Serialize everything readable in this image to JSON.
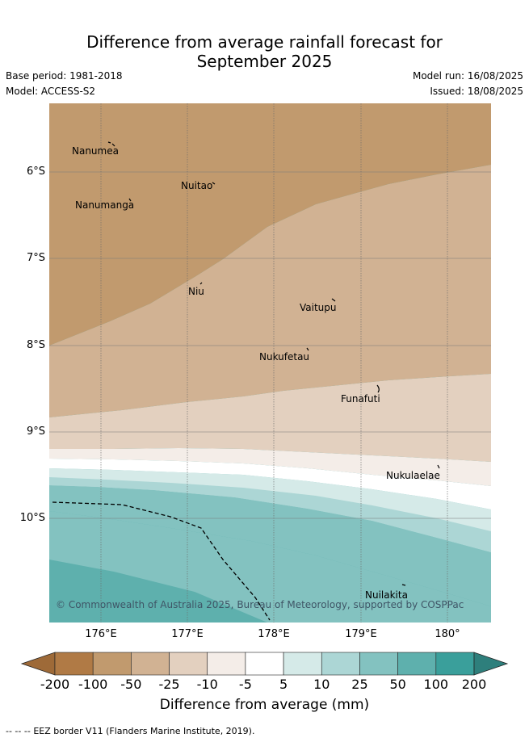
{
  "title_line1": "Difference from average rainfall forecast for",
  "title_line2": "September 2025",
  "meta": {
    "base_period": "Base period: 1981-2018",
    "model": "Model: ACCESS-S2",
    "model_run": "Model run: 16/08/2025",
    "issued": "Issued: 18/08/2025"
  },
  "islands": [
    {
      "name": "Nanumea"
    },
    {
      "name": "Nuitao"
    },
    {
      "name": "Nanumanga"
    },
    {
      "name": "Niu"
    },
    {
      "name": "Vaitupu"
    },
    {
      "name": "Nukufetau"
    },
    {
      "name": "Funafuti"
    },
    {
      "name": "Nukulaelae"
    },
    {
      "name": "Nuilakita"
    }
  ],
  "copyright": "© Commonwealth of Australia 2025, Bureau of Meteorology, supported by COSPPac",
  "axes": {
    "lat_ticks": [
      "6°S",
      "7°S",
      "8°S",
      "9°S",
      "10°S"
    ],
    "lon_ticks": [
      "176°E",
      "177°E",
      "178°E",
      "179°E",
      "180°"
    ]
  },
  "colorbar": {
    "title": "Difference from average (mm)",
    "labels": [
      "-200",
      "-100",
      "-50",
      "-25",
      "-10",
      "-5",
      "5",
      "10",
      "25",
      "50",
      "100",
      "200"
    ],
    "colors": [
      "#b07a45",
      "#c19a6e",
      "#d1b293",
      "#e3d0bf",
      "#f4ede8",
      "#ffffff",
      "#d5eae8",
      "#acd6d5",
      "#83c2c0",
      "#5eb0ad",
      "#3a9f9b"
    ],
    "extend_colors": [
      "#9e6a38",
      "#2e7f7c"
    ]
  },
  "legend_footer": "EEZ border V11 (Flanders Marine Institute, 2019)."
}
